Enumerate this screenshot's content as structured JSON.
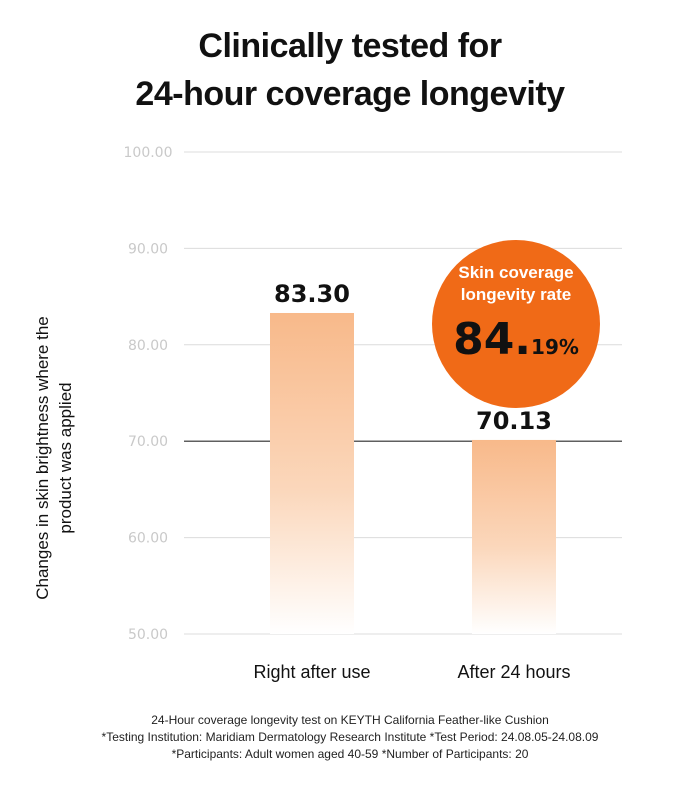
{
  "chart_data": {
    "type": "bar",
    "title": [
      "Clinically tested for",
      "24-hour coverage longevity"
    ],
    "ylabel": [
      "Changes in skin brightness where the",
      "product was applied"
    ],
    "xlabel": "",
    "categories": [
      "Right after use",
      "After 24 hours"
    ],
    "values": [
      83.3,
      70.13
    ],
    "value_labels": [
      "83.30",
      "70.13"
    ],
    "ylim": [
      50,
      100
    ],
    "y_ticks": [
      100,
      90,
      80,
      70,
      60,
      50
    ],
    "y_tick_labels": [
      "100.00",
      "90.00",
      "80.00",
      "70.00",
      "60.00",
      "50.00"
    ],
    "grid": true,
    "bar_color_top": "#f8b98a",
    "bar_color_bottom": "#ffffff"
  },
  "badge": {
    "label": [
      "Skin coverage",
      "longevity rate"
    ],
    "value_int": "84.",
    "value_dec": "19%",
    "color": "#f06a17"
  },
  "footnote": [
    "24-Hour coverage longevity test on KEYTH California Feather-like Cushion",
    "*Testing Institution: Maridiam Dermatology Research Institute *Test Period: 24.08.05-24.08.09",
    "*Participants: Adult women aged 40-59 *Number of Participants: 20"
  ]
}
